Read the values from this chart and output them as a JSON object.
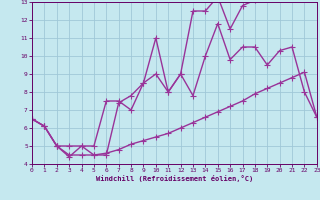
{
  "xlabel": "Windchill (Refroidissement éolien,°C)",
  "xlim": [
    0,
    23
  ],
  "ylim": [
    4,
    13
  ],
  "xticks": [
    0,
    1,
    2,
    3,
    4,
    5,
    6,
    7,
    8,
    9,
    10,
    11,
    12,
    13,
    14,
    15,
    16,
    17,
    18,
    19,
    20,
    21,
    22,
    23
  ],
  "yticks": [
    4,
    5,
    6,
    7,
    8,
    9,
    10,
    11,
    12,
    13
  ],
  "background_color": "#c5e8ef",
  "grid_color": "#a0c8d8",
  "line_color": "#993399",
  "line_width": 1.0,
  "marker": "+",
  "marker_size": 4,
  "series": [
    {
      "x": [
        0,
        1,
        2,
        3,
        4,
        5,
        6,
        7,
        8,
        9,
        10,
        11,
        12,
        13,
        14,
        15,
        16,
        17,
        18,
        19,
        20,
        21
      ],
      "y": [
        6.5,
        6.1,
        5.0,
        5.0,
        5.0,
        4.5,
        4.5,
        7.4,
        7.8,
        8.5,
        11.0,
        8.0,
        9.0,
        12.5,
        12.5,
        13.3,
        11.5,
        12.8,
        13.1,
        null,
        null,
        null
      ]
    },
    {
      "x": [
        0,
        1,
        2,
        3,
        4,
        5,
        6,
        7,
        8,
        9,
        10,
        11,
        12,
        13,
        14,
        15,
        16,
        17,
        18,
        19,
        20,
        21,
        22,
        23
      ],
      "y": [
        6.5,
        6.1,
        5.0,
        4.4,
        5.0,
        5.0,
        7.5,
        7.5,
        7.0,
        8.5,
        9.0,
        8.0,
        9.0,
        7.8,
        10.0,
        11.8,
        9.8,
        10.5,
        10.5,
        9.5,
        10.3,
        10.5,
        8.0,
        6.6
      ]
    },
    {
      "x": [
        0,
        1,
        2,
        3,
        4,
        5,
        6,
        7,
        8,
        9,
        10,
        11,
        12,
        13,
        14,
        15,
        16,
        17,
        18,
        19,
        20,
        21,
        22,
        23
      ],
      "y": [
        6.5,
        6.1,
        5.0,
        4.5,
        4.5,
        4.5,
        4.6,
        4.8,
        5.1,
        5.3,
        5.5,
        5.7,
        6.0,
        6.3,
        6.6,
        6.9,
        7.2,
        7.5,
        7.9,
        8.2,
        8.5,
        8.8,
        9.1,
        6.6
      ]
    }
  ]
}
